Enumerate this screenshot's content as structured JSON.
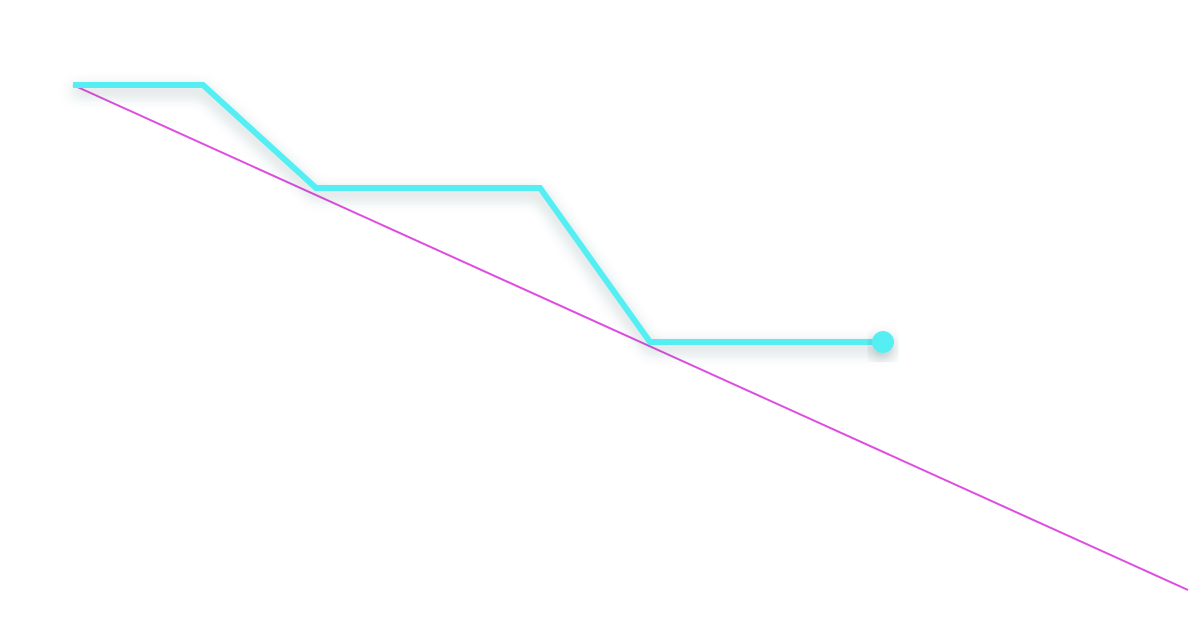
{
  "chart_data": {
    "type": "line",
    "title": "",
    "xlabel": "",
    "ylabel": "",
    "grid": false,
    "legend": "none",
    "xlim": [
      0,
      1115
    ],
    "ylim": [
      -505,
      0
    ],
    "series": [
      {
        "color": "#55eef2",
        "style": "step-line",
        "end_marker": "circle",
        "x": [
          0,
          130,
          243,
          467,
          577,
          810
        ],
        "y": [
          0,
          0,
          -103,
          -103,
          -257,
          -257
        ]
      },
      {
        "color": "#de4ddf",
        "style": "trend-line",
        "x": [
          0,
          1115
        ],
        "y": [
          0,
          -505
        ]
      }
    ]
  }
}
